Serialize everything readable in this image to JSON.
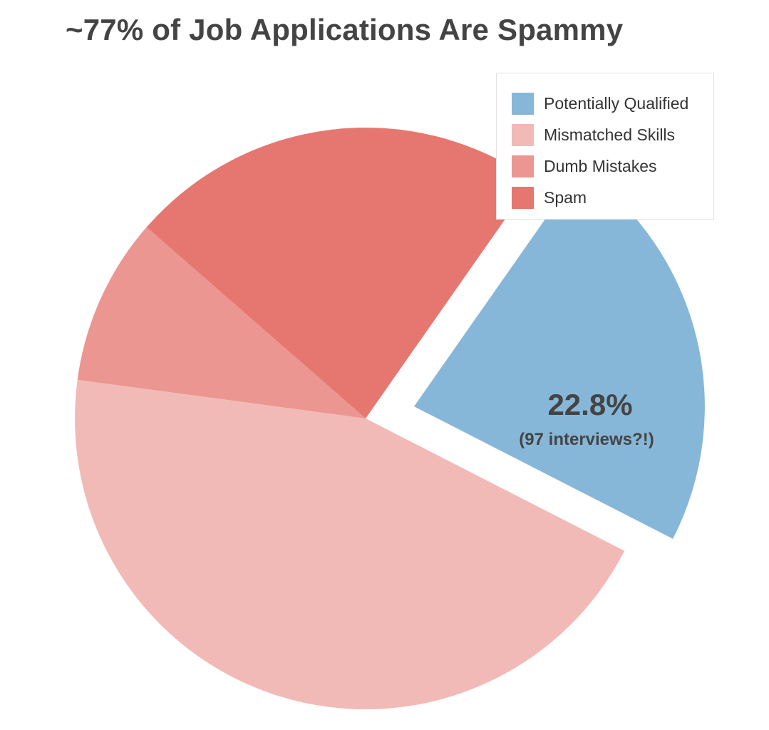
{
  "chart_data": {
    "type": "pie",
    "title": "~77% of Job Applications Are Spammy",
    "legend_position": "top-right",
    "exploded_slice": "Potentially Qualified",
    "slices": [
      {
        "label": "Potentially Qualified",
        "value": 22.8,
        "color": "#87b7d8"
      },
      {
        "label": "Mismatched Skills",
        "value": 44.6,
        "color": "#f2bab7"
      },
      {
        "label": "Dumb Mistakes",
        "value": 9.3,
        "color": "#eb9690"
      },
      {
        "label": "Spam",
        "value": 23.3,
        "color": "#e67770"
      }
    ],
    "annotation": {
      "value_text": "22.8%",
      "sub_text": "(97 interviews?!)"
    }
  }
}
